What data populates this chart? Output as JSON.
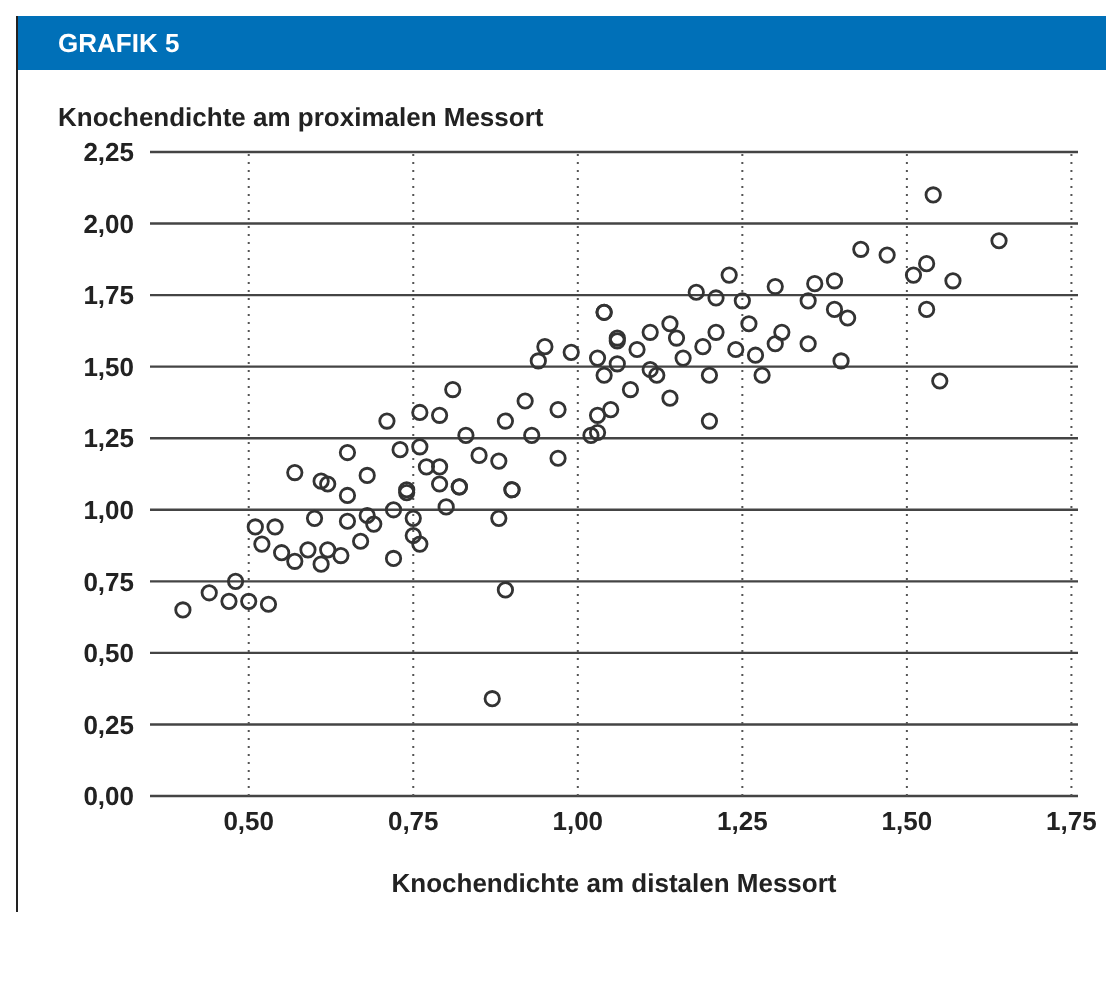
{
  "chart_data": {
    "type": "scatter",
    "title": "GRAFIK 5",
    "ylabel": "Knochendichte am proximalen Messort",
    "xlabel": "Knochendichte am distalen Messort",
    "xlim": [
      0.35,
      1.76
    ],
    "ylim": [
      0,
      2.25
    ],
    "xticks": [
      {
        "value": 0.5,
        "label": "0,50"
      },
      {
        "value": 0.75,
        "label": "0,75"
      },
      {
        "value": 1,
        "label": "1,00"
      },
      {
        "value": 1.25,
        "label": "1,25"
      },
      {
        "value": 1.5,
        "label": "1,50"
      },
      {
        "value": 1.75,
        "label": "1,75"
      }
    ],
    "yticks": [
      {
        "value": 0,
        "label": "0,00"
      },
      {
        "value": 0.25,
        "label": "0,25"
      },
      {
        "value": 0.5,
        "label": "0,50"
      },
      {
        "value": 0.75,
        "label": "0,75"
      },
      {
        "value": 1,
        "label": "1,00"
      },
      {
        "value": 1.25,
        "label": "1,25"
      },
      {
        "value": 1.5,
        "label": "1,50"
      },
      {
        "value": 1.75,
        "label": "1,75"
      },
      {
        "value": 2,
        "label": "2,00"
      },
      {
        "value": 2.25,
        "label": "2,25"
      }
    ],
    "grid": true,
    "marker": "circle",
    "color": "#333333",
    "x": [
      1.54,
      1.64,
      1.43,
      1.47,
      1.53,
      1.51,
      1.57,
      1.39,
      1.36,
      1.35,
      1.3,
      1.39,
      1.41,
      1.53,
      1.31,
      1.35,
      1.3,
      1.4,
      1.55,
      1.28,
      1.27,
      1.24,
      1.23,
      1.18,
      1.21,
      1.25,
      1.26,
      1.21,
      1.19,
      1.2,
      1.2,
      1.04,
      1.06,
      1.11,
      1.14,
      1.15,
      1.16,
      1.12,
      1.14,
      1.08,
      1.05,
      1.03,
      1.06,
      1.09,
      1.11,
      1.04,
      1.03,
      1.04,
      0.95,
      0.94,
      0.99,
      1.06,
      0.81,
      0.71,
      0.76,
      0.79,
      0.65,
      0.57,
      0.61,
      0.68,
      0.73,
      0.76,
      0.83,
      0.89,
      0.92,
      0.97,
      0.88,
      0.97,
      0.93,
      0.85,
      0.79,
      0.9,
      0.82,
      0.74,
      1.03,
      1.02,
      0.62,
      0.65,
      0.6,
      0.51,
      0.54,
      0.52,
      0.55,
      0.57,
      0.59,
      0.62,
      0.61,
      0.64,
      0.67,
      0.65,
      0.68,
      0.69,
      0.72,
      0.72,
      0.75,
      0.76,
      0.75,
      0.74,
      0.79,
      0.8,
      0.82,
      0.88,
      0.9,
      0.89,
      0.87,
      0.48,
      0.44,
      0.47,
      0.5,
      0.53,
      0.4,
      0.77
    ],
    "values": [
      2.1,
      1.94,
      1.91,
      1.89,
      1.86,
      1.82,
      1.8,
      1.8,
      1.79,
      1.73,
      1.78,
      1.7,
      1.67,
      1.7,
      1.62,
      1.58,
      1.58,
      1.52,
      1.45,
      1.47,
      1.54,
      1.56,
      1.82,
      1.76,
      1.74,
      1.73,
      1.65,
      1.62,
      1.57,
      1.31,
      1.47,
      1.69,
      1.6,
      1.62,
      1.65,
      1.6,
      1.53,
      1.47,
      1.39,
      1.42,
      1.35,
      1.27,
      1.51,
      1.56,
      1.49,
      1.47,
      1.53,
      1.69,
      1.57,
      1.52,
      1.55,
      1.59,
      1.42,
      1.31,
      1.34,
      1.33,
      1.2,
      1.13,
      1.1,
      1.12,
      1.21,
      1.22,
      1.26,
      1.31,
      1.38,
      1.35,
      1.17,
      1.18,
      1.26,
      1.19,
      1.15,
      1.07,
      1.08,
      1.07,
      1.33,
      1.26,
      1.09,
      1.05,
      0.97,
      0.94,
      0.94,
      0.88,
      0.85,
      0.82,
      0.86,
      0.86,
      0.81,
      0.84,
      0.89,
      0.96,
      0.98,
      0.95,
      1,
      0.83,
      0.91,
      0.88,
      0.97,
      1.06,
      1.09,
      1.01,
      1.08,
      0.97,
      1.07,
      0.72,
      0.34,
      0.75,
      0.71,
      0.68,
      0.68,
      0.67,
      0.65,
      1.15
    ]
  }
}
